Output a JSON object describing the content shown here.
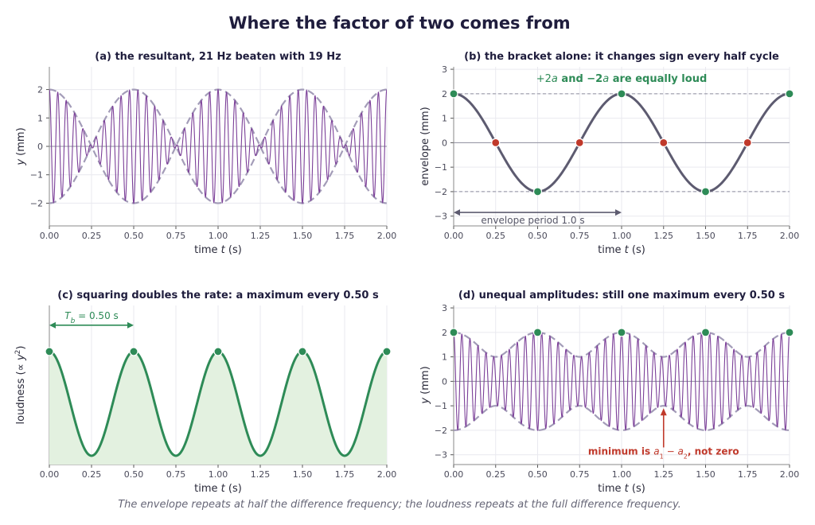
{
  "title": "Where the factor of two comes from",
  "caption": "The envelope repeats at half the difference frequency; the loudness repeats at the full difference frequency.",
  "colors": {
    "signal": "#7b3f98",
    "envelope_dash": "#a39cb8",
    "bracket": "#5d5b70",
    "green": "#2e8b57",
    "red": "#c0392b",
    "fill_green": "#e3f1e0",
    "axis": "#2a2a3a",
    "grid": "#e9e9ef"
  },
  "chart_data": [
    {
      "id": "a",
      "type": "line",
      "title": "(a)  the resultant, 21 Hz beaten with 19 Hz",
      "xlabel": "time t (s)",
      "ylabel": "y (mm)",
      "xlim": [
        0,
        2
      ],
      "ylim": [
        -2.8,
        2.8
      ],
      "xticks": [
        "0.00",
        "0.25",
        "0.50",
        "0.75",
        "1.00",
        "1.25",
        "1.50",
        "1.75",
        "2.00"
      ],
      "yticks": [
        "−2",
        "−1",
        "0",
        "1",
        "2"
      ],
      "ytick_values": [
        -2,
        -1,
        0,
        1,
        2
      ],
      "series": [
        {
          "kind": "signal",
          "amplitude_1": 1,
          "amplitude_2": 1,
          "frequency_1_hz": 21,
          "frequency_2_hz": 19
        },
        {
          "kind": "envelope",
          "style": "dashed",
          "amplitude": 2,
          "period_s": 1.0
        }
      ],
      "grid": true
    },
    {
      "id": "b",
      "type": "line",
      "title": "(b)  the bracket alone: it changes sign every half cycle",
      "xlabel": "time t (s)",
      "ylabel": "envelope (mm)",
      "xlim": [
        0,
        2
      ],
      "ylim": [
        -3.4,
        3.1
      ],
      "xticks": [
        "0.00",
        "0.25",
        "0.50",
        "0.75",
        "1.00",
        "1.25",
        "1.50",
        "1.75",
        "2.00"
      ],
      "yticks": [
        "−3",
        "−2",
        "−1",
        "0",
        "1",
        "2",
        "3"
      ],
      "ytick_values": [
        -3,
        -2,
        -1,
        0,
        1,
        2,
        3
      ],
      "series": [
        {
          "kind": "bracket",
          "amplitude": 2,
          "period_s": 1.0
        }
      ],
      "extrema_points": [
        [
          0,
          2
        ],
        [
          0.5,
          -2
        ],
        [
          1.0,
          2
        ],
        [
          1.5,
          -2
        ],
        [
          2.0,
          2
        ]
      ],
      "zero_points": [
        [
          0.25,
          0
        ],
        [
          0.75,
          0
        ],
        [
          1.25,
          0
        ],
        [
          1.75,
          0
        ]
      ],
      "reference_lines": [
        2,
        -2
      ],
      "annotation_top": {
        "pre": "+2",
        "var1": "a",
        "mid": " and −2",
        "var2": "a",
        "post": " are equally loud"
      },
      "period_arrow": {
        "from": 0,
        "to": 1.0,
        "y": -2.85,
        "label": "envelope period 1.0 s"
      },
      "grid": true
    },
    {
      "id": "c",
      "type": "area",
      "title": "(c)  squaring doubles the rate: a maximum every 0.50 s",
      "xlabel": "time t (s)",
      "ylabel": "loudness  (∝ y²)",
      "xlim": [
        0,
        2
      ],
      "ylim": [
        -0.03,
        1.42
      ],
      "xticks": [
        "0.00",
        "0.25",
        "0.50",
        "0.75",
        "1.00",
        "1.25",
        "1.50",
        "1.75",
        "2.00"
      ],
      "yticks": [],
      "series": [
        {
          "kind": "loudness",
          "period_s": 0.5
        }
      ],
      "maxima_points": [
        [
          0,
          1
        ],
        [
          0.5,
          1
        ],
        [
          1.0,
          1
        ],
        [
          1.5,
          1
        ],
        [
          2.0,
          1
        ]
      ],
      "period_arrow": {
        "from": 0,
        "to": 0.5,
        "y": 1.24,
        "label_var": "T",
        "label_sub": "b",
        "label_rest": " = 0.50 s"
      },
      "grid": true
    },
    {
      "id": "d",
      "type": "line",
      "title": "(d)  unequal amplitudes: still one maximum every 0.50 s",
      "xlabel": "time t (s)",
      "ylabel": "y (mm)",
      "xlim": [
        0,
        2
      ],
      "ylim": [
        -3.4,
        3.1
      ],
      "xticks": [
        "0.00",
        "0.25",
        "0.50",
        "0.75",
        "1.00",
        "1.25",
        "1.50",
        "1.75",
        "2.00"
      ],
      "yticks": [
        "−3",
        "−2",
        "−1",
        "0",
        "1",
        "2",
        "3"
      ],
      "ytick_values": [
        -3,
        -2,
        -1,
        0,
        1,
        2,
        3
      ],
      "series": [
        {
          "kind": "signal",
          "amplitude_1": 1.5,
          "amplitude_2": 0.5,
          "frequency_1_hz": 21,
          "frequency_2_hz": 19
        },
        {
          "kind": "envelope",
          "style": "dashed",
          "max": 2,
          "min": 1,
          "period_s": 0.5
        }
      ],
      "maxima_points": [
        [
          0,
          2
        ],
        [
          0.5,
          2
        ],
        [
          1.0,
          2
        ],
        [
          1.5,
          2
        ],
        [
          2.0,
          2
        ]
      ],
      "annotation": {
        "pre": "minimum is ",
        "var1": "a",
        "sub1": "1",
        "mid": " − ",
        "var2": "a",
        "sub2": "2",
        "post": ", not zero",
        "points_to": [
          1.25,
          -1.1
        ]
      },
      "grid": true
    }
  ]
}
